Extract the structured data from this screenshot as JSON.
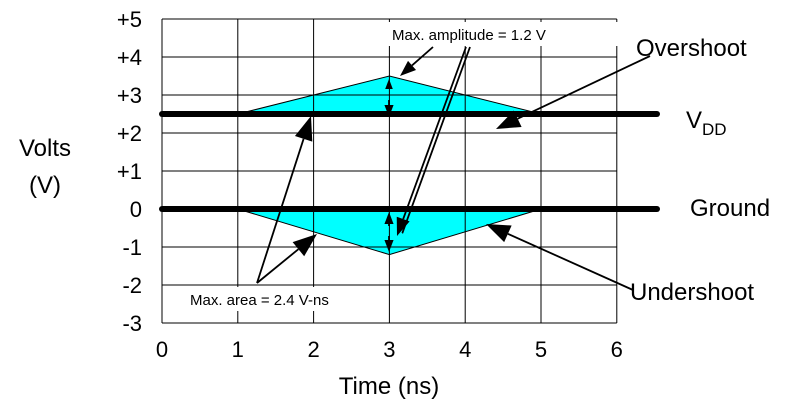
{
  "y_ticks": [
    "+5",
    "+4",
    "+3",
    "+2",
    "+1",
    "0",
    "-1",
    "-2",
    "-3"
  ],
  "x_ticks": [
    "0",
    "1",
    "2",
    "3",
    "4",
    "5",
    "6"
  ],
  "y_label_line1": "Volts",
  "y_label_line2": "(V)",
  "x_label": "Time (ns)",
  "labels": {
    "overshoot": "Overshoot",
    "vdd_main": "V",
    "vdd_sub": "DD",
    "ground": "Ground",
    "undershoot": "Undershoot",
    "max_amplitude": "Max. amplitude = 1.2 V",
    "max_area": "Max. area = 2.4 V-ns"
  },
  "colors": {
    "fill": "#00ffff",
    "rail": "#000000",
    "grid": "#000000"
  },
  "waveforms": {
    "vdd_volts": 2.5,
    "ground_volts": 0,
    "overshoot": {
      "start_ns": 1,
      "peak_ns": 3,
      "end_ns": 5,
      "peak_volts": 3.5
    },
    "undershoot": {
      "start_ns": 1,
      "peak_ns": 3,
      "end_ns": 5,
      "peak_volts": -1.2
    }
  }
}
